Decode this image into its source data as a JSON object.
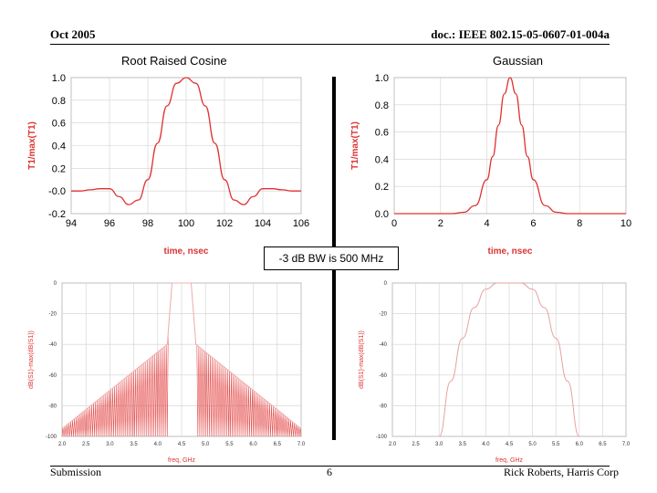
{
  "header": {
    "date": "Oct 2005",
    "doc_id": "doc.: IEEE 802.15-05-0607-01-004a"
  },
  "footer": {
    "left": "Submission",
    "page": "6",
    "right": "Rick Roberts, Harris Corp"
  },
  "bandwidth_note": "-3 dB BW is 500 MHz",
  "colors": {
    "curve": "#e03030",
    "grid": "#d0d0d0",
    "label": "#d33333"
  },
  "chart_data": [
    {
      "id": "rrc_time",
      "type": "line",
      "title": "Root Raised Cosine",
      "xlabel": "time, nsec",
      "ylabel": "T1/max(T1)",
      "xlim": [
        94,
        106
      ],
      "ylim": [
        -0.2,
        1.0
      ],
      "x_ticks": [
        "94",
        "96",
        "98",
        "100",
        "102",
        "104",
        "106"
      ],
      "y_ticks": [
        "1.0",
        "0.8",
        "0.6",
        "0.4",
        "0.2",
        "-0.0",
        "-0.2"
      ],
      "x": [
        94,
        94.5,
        95,
        95.5,
        96,
        96.5,
        97,
        97.5,
        98,
        98.5,
        99,
        99.5,
        100,
        100.5,
        101,
        101.5,
        102,
        102.5,
        103,
        103.5,
        104,
        104.5,
        105,
        105.5,
        106
      ],
      "y": [
        0,
        0.0,
        0.01,
        0.02,
        0.02,
        -0.05,
        -0.12,
        -0.08,
        0.1,
        0.42,
        0.75,
        0.95,
        1.0,
        0.95,
        0.75,
        0.42,
        0.1,
        -0.08,
        -0.12,
        -0.05,
        0.02,
        0.02,
        0.01,
        0.0,
        0
      ]
    },
    {
      "id": "gauss_time",
      "type": "line",
      "title": "Gaussian",
      "xlabel": "time, nsec",
      "ylabel": "T1/max(T1)",
      "xlim": [
        0,
        10
      ],
      "ylim": [
        0,
        1.0
      ],
      "x_ticks": [
        "0",
        "2",
        "4",
        "6",
        "8",
        "10"
      ],
      "y_ticks": [
        "1.0",
        "0.8",
        "0.6",
        "0.4",
        "0.2",
        "0.0"
      ],
      "x": [
        0,
        2.5,
        3,
        3.5,
        4,
        4.25,
        4.5,
        4.75,
        5,
        5.25,
        5.5,
        5.75,
        6,
        6.5,
        7,
        7.5,
        10
      ],
      "y": [
        0,
        0,
        0.01,
        0.06,
        0.25,
        0.42,
        0.65,
        0.88,
        1.0,
        0.88,
        0.65,
        0.42,
        0.25,
        0.06,
        0.01,
        0,
        0
      ]
    },
    {
      "id": "rrc_freq",
      "type": "line",
      "title": "",
      "xlabel": "freq, GHz",
      "ylabel": "dB(S1)-max(dB(S1))",
      "xlim": [
        2.0,
        7.0
      ],
      "ylim": [
        -100,
        0
      ],
      "x_ticks": [
        "2.0",
        "2.5",
        "3.0",
        "3.5",
        "4.0",
        "4.5",
        "5.0",
        "5.5",
        "6.0",
        "6.5",
        "7.0"
      ],
      "y_ticks": [
        "0",
        "-20",
        "-40",
        "-60",
        "-80",
        "-100"
      ]
    },
    {
      "id": "gauss_freq",
      "type": "line",
      "title": "",
      "xlabel": "freq, GHz",
      "ylabel": "dB(S1)-max(dB(S1))",
      "xlim": [
        2.0,
        7.0
      ],
      "ylim": [
        -100,
        0
      ],
      "x_ticks": [
        "2.0",
        "2.5",
        "3.0",
        "3.5",
        "4.0",
        "4.5",
        "5.0",
        "5.5",
        "6.0",
        "6.5",
        "7.0"
      ],
      "y_ticks": [
        "0",
        "-20",
        "-40",
        "-60",
        "-80",
        "-100"
      ],
      "x": [
        3.0,
        3.25,
        3.5,
        3.75,
        4.0,
        4.25,
        4.5,
        4.75,
        5.0,
        5.25,
        5.5,
        5.75,
        6.0
      ],
      "y": [
        -100,
        -64,
        -36,
        -16,
        -4,
        0,
        0,
        0,
        -4,
        -16,
        -36,
        -64,
        -100
      ]
    }
  ]
}
